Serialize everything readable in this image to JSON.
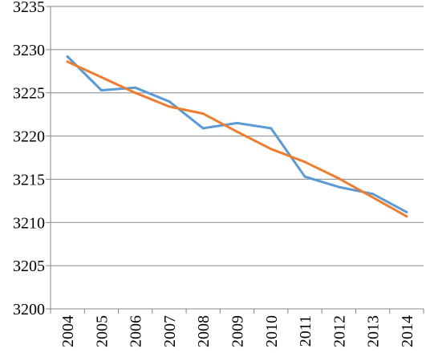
{
  "chart_data": {
    "type": "line",
    "x": [
      "2004",
      "2005",
      "2006",
      "2007",
      "2008",
      "2009",
      "2010",
      "2011",
      "2012",
      "2013",
      "2014"
    ],
    "ylim": [
      3200,
      3235
    ],
    "yticks": [
      "3200",
      "3205",
      "3210",
      "3215",
      "3220",
      "3225",
      "3230",
      "3235"
    ],
    "grid": "horizontal",
    "legend": "none",
    "series": [
      {
        "color": "#5B9BD5",
        "values": [
          3229.2,
          3225.3,
          3225.6,
          3224.0,
          3220.9,
          3221.5,
          3220.9,
          3215.3,
          3214.1,
          3213.3,
          3211.2
        ]
      },
      {
        "color": "#ED7D31",
        "values": [
          3228.6,
          3226.8,
          3225.0,
          3223.4,
          3222.6,
          3220.5,
          3218.5,
          3217.0,
          3215.1,
          3212.9,
          3210.7
        ]
      }
    ]
  }
}
